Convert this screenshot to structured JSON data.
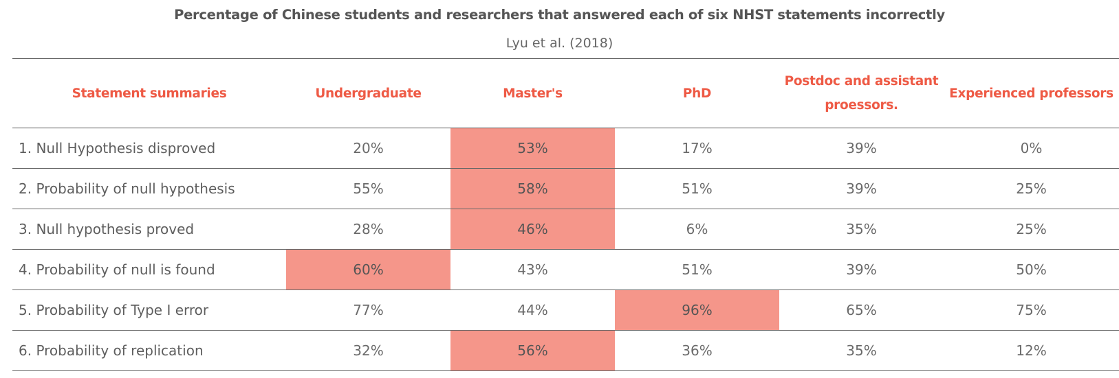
{
  "chart_data": {
    "type": "table",
    "title": "Percentage of Chinese students and researchers that answered each of six NHST statements incorrectly",
    "subtitle": "Lyu et al. (2018)",
    "columns": [
      "Statement summaries",
      "Undergraduate",
      "Master's",
      "PhD",
      "Postdoc and assistant proessors.",
      "Experienced professors"
    ],
    "rows": [
      {
        "label": "1. Null Hypothesis disproved",
        "values": [
          "20%",
          "53%",
          "17%",
          "39%",
          "0%"
        ],
        "highlight": 1
      },
      {
        "label": "2. Probability of null hypothesis",
        "values": [
          "55%",
          "58%",
          "51%",
          "39%",
          "25%"
        ],
        "highlight": 1
      },
      {
        "label": "3. Null hypothesis proved",
        "values": [
          "28%",
          "46%",
          "6%",
          "35%",
          "25%"
        ],
        "highlight": 1
      },
      {
        "label": "4. Probability of null is found",
        "values": [
          "60%",
          "43%",
          "51%",
          "39%",
          "50%"
        ],
        "highlight": 0
      },
      {
        "label": "5. Probability of Type I error",
        "values": [
          "77%",
          "44%",
          "96%",
          "65%",
          "75%"
        ],
        "highlight": 2
      },
      {
        "label": "6. Probability of replication",
        "values": [
          "32%",
          "56%",
          "36%",
          "35%",
          "12%"
        ],
        "highlight": 1
      }
    ],
    "colors": {
      "header_text": "#ee5a45",
      "highlight_fill": "#f5968a"
    }
  }
}
